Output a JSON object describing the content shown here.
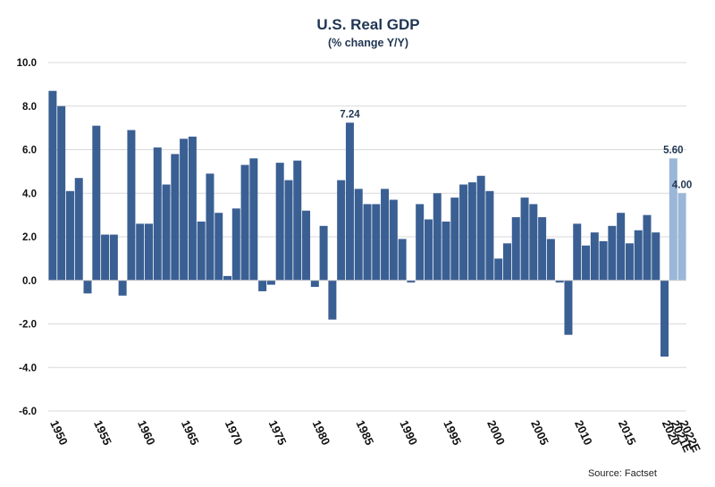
{
  "chart_data": {
    "type": "bar",
    "title": "U.S. Real GDP",
    "subtitle": "(% change Y/Y)",
    "source": "Source: Factset",
    "ylim": [
      -6.0,
      10.0
    ],
    "yticks": [
      10.0,
      8.0,
      6.0,
      4.0,
      2.0,
      0.0,
      -2.0,
      -4.0,
      -6.0
    ],
    "grid": true,
    "colors": {
      "actual": "#3a5f93",
      "estimate": "#9ab7d8",
      "grid": "#d9d9d9",
      "title": "#1f3552"
    },
    "categories": [
      "1950",
      "1951",
      "1952",
      "1953",
      "1954",
      "1955",
      "1956",
      "1957",
      "1958",
      "1959",
      "1960",
      "1961",
      "1962",
      "1963",
      "1964",
      "1965",
      "1966",
      "1967",
      "1968",
      "1969",
      "1970",
      "1971",
      "1972",
      "1973",
      "1974",
      "1975",
      "1976",
      "1977",
      "1978",
      "1979",
      "1980",
      "1981",
      "1982",
      "1983",
      "1984",
      "1985",
      "1986",
      "1987",
      "1988",
      "1989",
      "1990",
      "1991",
      "1992",
      "1993",
      "1994",
      "1995",
      "1996",
      "1997",
      "1998",
      "1999",
      "2000",
      "2001",
      "2002",
      "2003",
      "2004",
      "2005",
      "2006",
      "2007",
      "2008",
      "2009",
      "2010",
      "2011",
      "2012",
      "2013",
      "2014",
      "2015",
      "2016",
      "2017",
      "2018",
      "2019",
      "2020",
      "2021E",
      "2022E"
    ],
    "values": [
      8.7,
      8.0,
      4.1,
      4.7,
      -0.6,
      7.1,
      2.1,
      2.1,
      -0.7,
      6.9,
      2.6,
      2.6,
      6.1,
      4.4,
      5.8,
      6.5,
      6.6,
      2.7,
      4.9,
      3.1,
      0.2,
      3.3,
      5.3,
      5.6,
      -0.5,
      -0.2,
      5.4,
      4.6,
      5.5,
      3.2,
      -0.3,
      2.5,
      -1.8,
      4.6,
      7.24,
      4.2,
      3.5,
      3.5,
      4.2,
      3.7,
      1.9,
      -0.1,
      3.5,
      2.8,
      4.0,
      2.7,
      3.8,
      4.4,
      4.5,
      4.8,
      4.1,
      1.0,
      1.7,
      2.9,
      3.8,
      3.5,
      2.9,
      1.9,
      -0.1,
      -2.5,
      2.6,
      1.6,
      2.2,
      1.8,
      2.5,
      3.1,
      1.7,
      2.3,
      3.0,
      2.2,
      -3.5,
      5.6,
      4.0
    ],
    "estimate_categories": [
      "2021E",
      "2022E"
    ],
    "xtick_labels": [
      "1950",
      "1955",
      "1960",
      "1965",
      "1970",
      "1975",
      "1980",
      "1985",
      "1990",
      "1995",
      "2000",
      "2005",
      "2010",
      "2015",
      "2020",
      "2021E",
      "2022E"
    ],
    "data_labels": [
      {
        "category": "1984",
        "text": "7.24"
      },
      {
        "category": "2021E",
        "text": "5.60"
      },
      {
        "category": "2022E",
        "text": "4.00"
      }
    ]
  }
}
